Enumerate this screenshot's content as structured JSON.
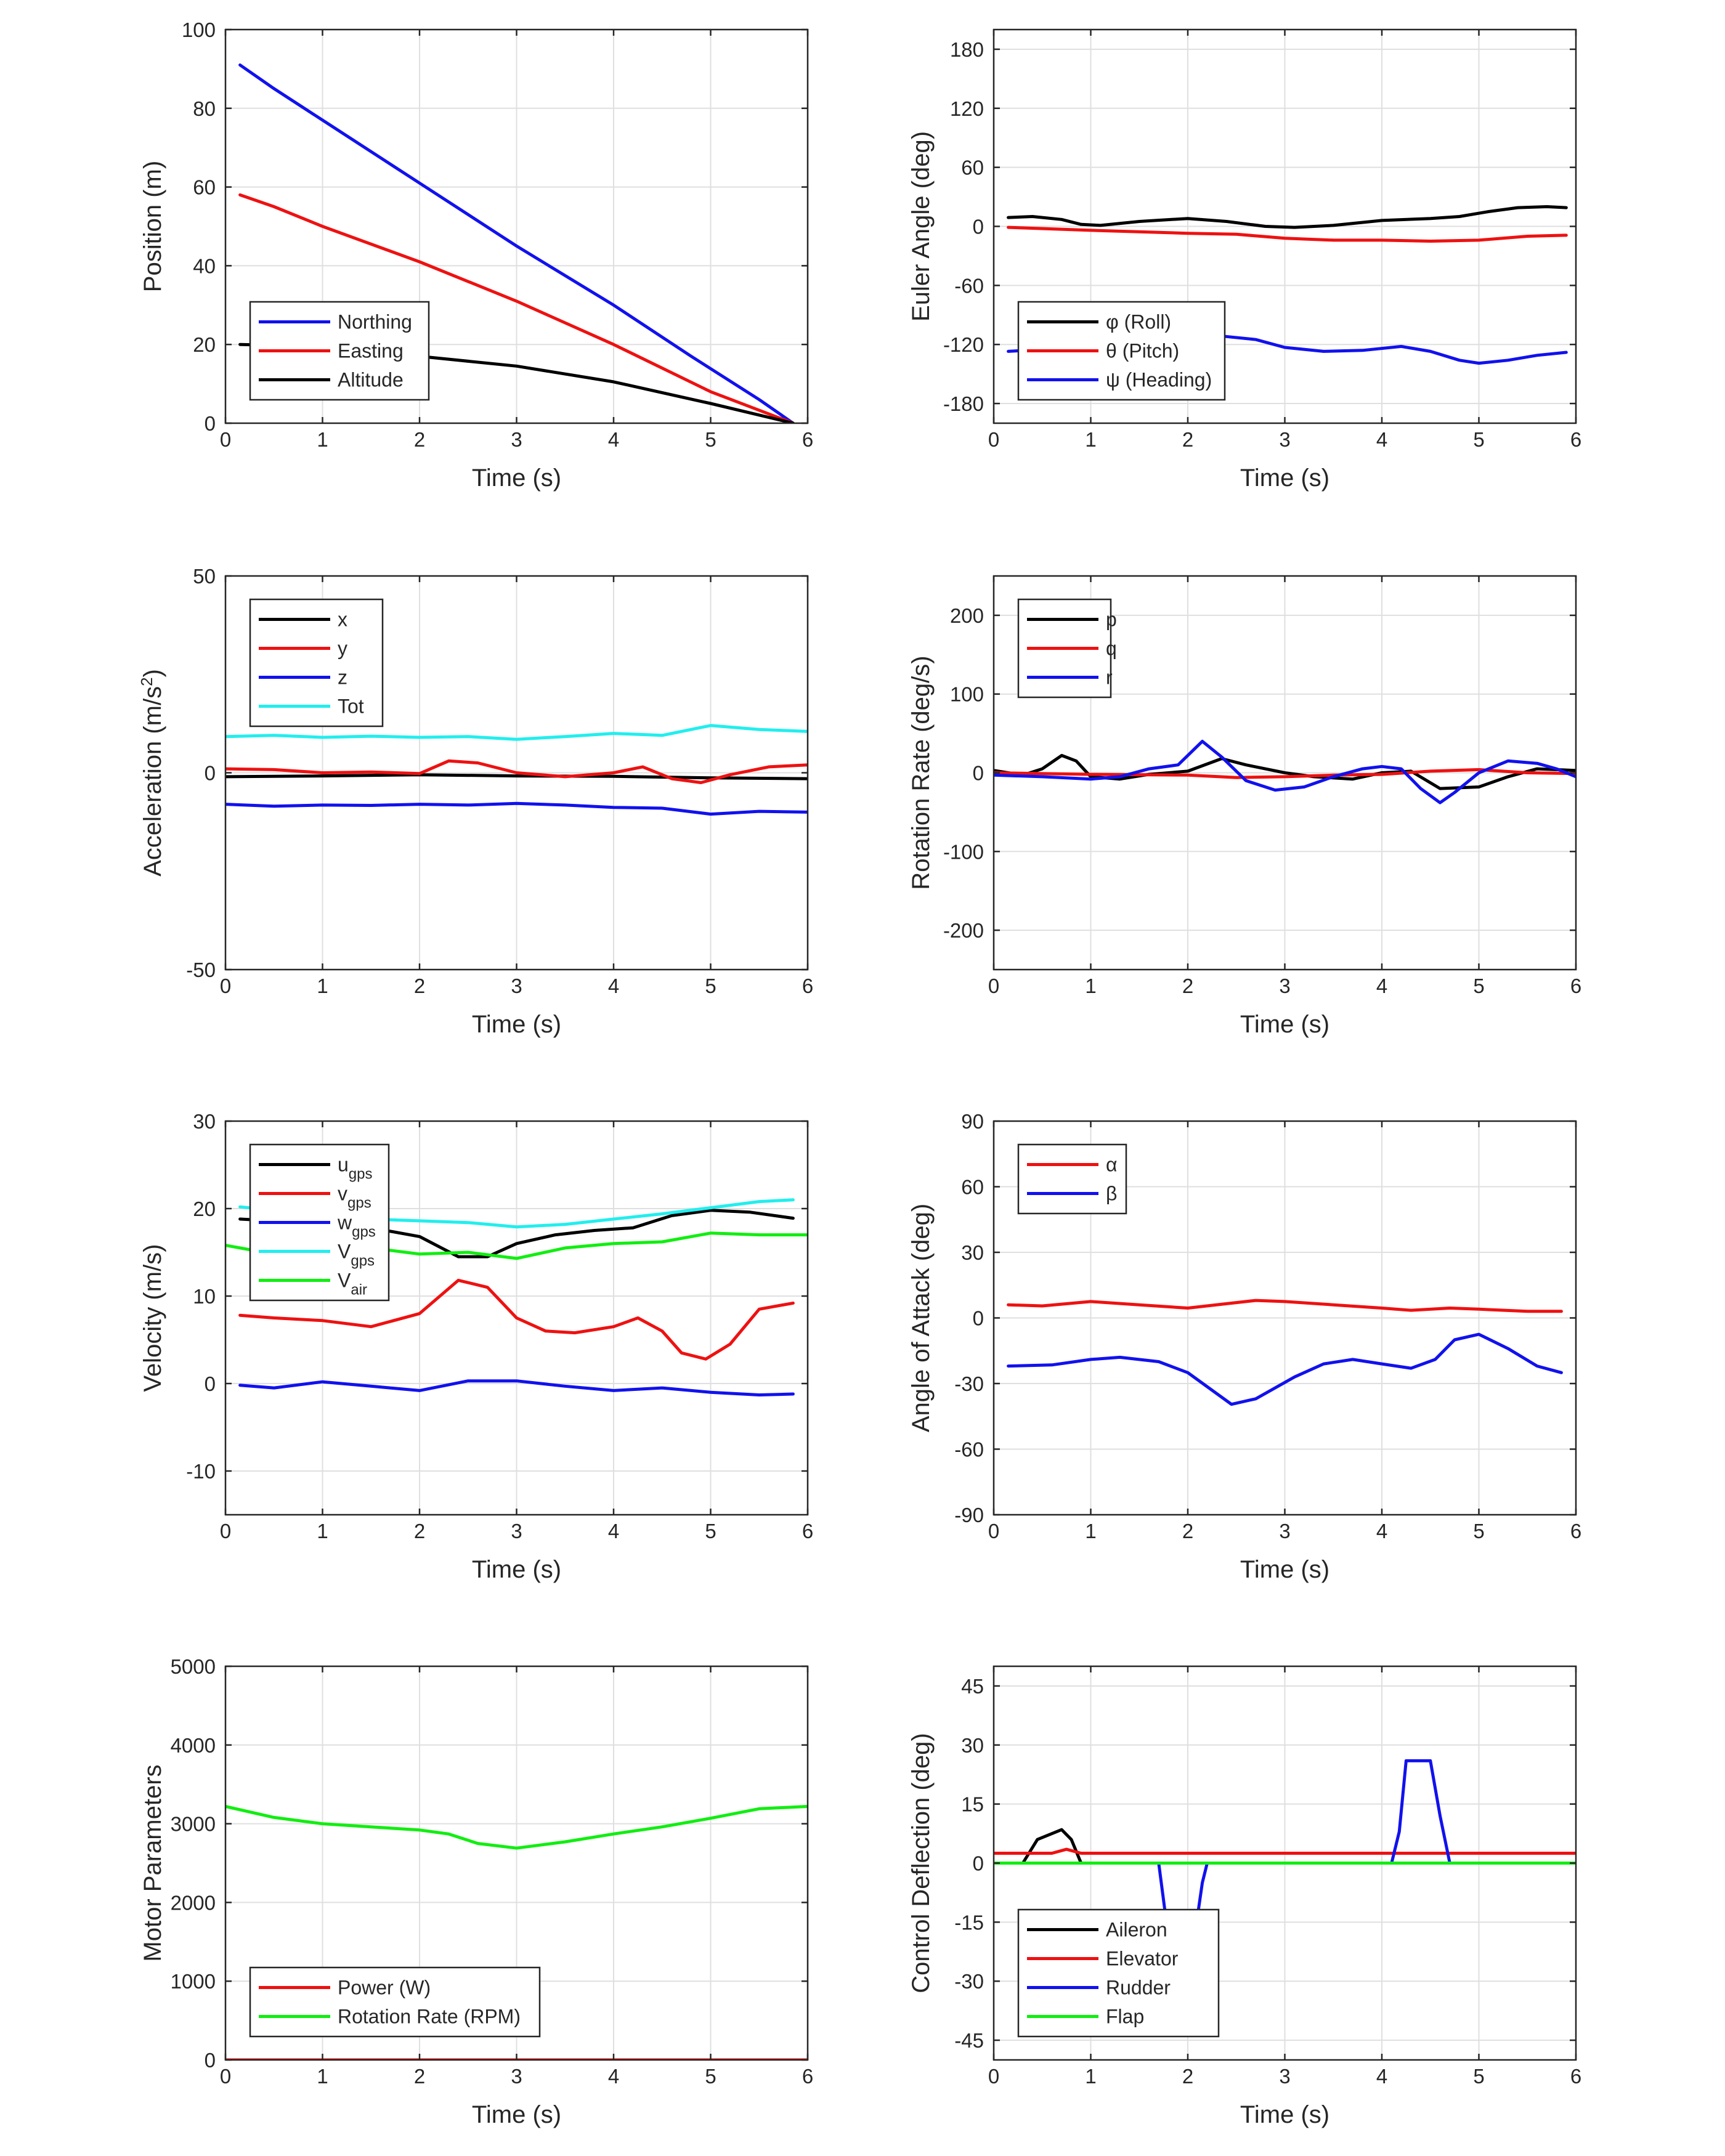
{
  "colors": {
    "black": "#000000",
    "red": "#ee1111",
    "blue": "#1111ee",
    "cyan": "#22eeee",
    "green": "#11ee11"
  },
  "chart_data": [
    {
      "type": "line",
      "xlabel": "Time (s)",
      "ylabel": "Position (m)",
      "xlim": [
        0,
        6
      ],
      "ylim": [
        0,
        100
      ],
      "xticks": [
        0,
        1,
        2,
        3,
        4,
        5,
        6
      ],
      "yticks": [
        0,
        20,
        40,
        60,
        80,
        100
      ],
      "grid": true,
      "legend_position": "bottom-left",
      "series": [
        {
          "name": "Northing",
          "color": "#1111ee",
          "x": [
            0.15,
            0.5,
            1,
            2,
            3,
            4,
            4.8,
            5.5,
            5.85
          ],
          "y": [
            91,
            85,
            77,
            61,
            45,
            30,
            17,
            6,
            0
          ]
        },
        {
          "name": "Easting",
          "color": "#ee1111",
          "x": [
            0.15,
            0.5,
            1,
            2,
            3,
            4,
            5,
            5.85
          ],
          "y": [
            58,
            55,
            50,
            41,
            31,
            20,
            8,
            0
          ]
        },
        {
          "name": "Altitude",
          "color": "#000000",
          "x": [
            0.15,
            0.5,
            1,
            2,
            3,
            4,
            5,
            5.85
          ],
          "y": [
            20,
            19.8,
            19,
            17,
            14.5,
            10.5,
            5,
            0
          ]
        }
      ]
    },
    {
      "type": "line",
      "xlabel": "Time (s)",
      "ylabel": "Euler Angle (deg)",
      "xlim": [
        0,
        6
      ],
      "ylim": [
        -200,
        200
      ],
      "xticks": [
        0,
        1,
        2,
        3,
        4,
        5,
        6
      ],
      "yticks": [
        -180,
        -120,
        -60,
        0,
        60,
        120,
        180
      ],
      "grid": true,
      "legend_position": "bottom-left",
      "series": [
        {
          "name": "φ (Roll)",
          "color": "#000000",
          "x": [
            0.15,
            0.4,
            0.7,
            0.9,
            1.1,
            1.5,
            2.0,
            2.4,
            2.8,
            3.1,
            3.5,
            4.0,
            4.5,
            4.8,
            5.1,
            5.4,
            5.7,
            5.9
          ],
          "y": [
            9,
            10,
            7,
            2,
            1,
            5,
            8,
            5,
            0,
            -1,
            1,
            6,
            8,
            10,
            15,
            19,
            20,
            19
          ]
        },
        {
          "name": "θ (Pitch)",
          "color": "#ee1111",
          "x": [
            0.15,
            1,
            2,
            2.5,
            3,
            3.5,
            4,
            4.5,
            5,
            5.5,
            5.9
          ],
          "y": [
            -1,
            -4,
            -7,
            -8,
            -12,
            -14,
            -14,
            -15,
            -14,
            -10,
            -9
          ]
        },
        {
          "name": "ψ (Heading)",
          "color": "#1111ee",
          "x": [
            0.15,
            0.5,
            1.0,
            1.5,
            2.0,
            2.3,
            2.7,
            3.0,
            3.4,
            3.8,
            4.2,
            4.5,
            4.8,
            5.0,
            5.3,
            5.6,
            5.9
          ],
          "y": [
            -127,
            -125,
            -120,
            -116,
            -112,
            -111,
            -115,
            -123,
            -127,
            -126,
            -122,
            -127,
            -136,
            -139,
            -136,
            -131,
            -128
          ]
        }
      ]
    },
    {
      "type": "line",
      "xlabel": "Time (s)",
      "ylabel": "Acceleration (m/s²)",
      "xlim": [
        0,
        6
      ],
      "ylim": [
        -50,
        50
      ],
      "xticks": [
        0,
        1,
        2,
        3,
        4,
        5,
        6
      ],
      "yticks": [
        -50,
        0,
        50
      ],
      "grid": true,
      "legend_position": "top-left",
      "series": [
        {
          "name": "x",
          "color": "#000000",
          "x": [
            0,
            1,
            2,
            3,
            4,
            5,
            6
          ],
          "y": [
            -1,
            -0.8,
            -0.5,
            -0.8,
            -0.9,
            -1.3,
            -1.5
          ]
        },
        {
          "name": "y",
          "color": "#ee1111",
          "x": [
            0,
            0.5,
            1.0,
            1.5,
            2.0,
            2.3,
            2.6,
            3.0,
            3.5,
            4.0,
            4.3,
            4.6,
            4.9,
            5.2,
            5.6,
            6.0
          ],
          "y": [
            1,
            0.8,
            0,
            0.2,
            -0.2,
            3,
            2.5,
            0,
            -1,
            0,
            1.5,
            -1.5,
            -2.5,
            -0.5,
            1.5,
            2
          ]
        },
        {
          "name": "z",
          "color": "#1111ee",
          "x": [
            0,
            0.5,
            1,
            1.5,
            2,
            2.5,
            3,
            3.5,
            4,
            4.5,
            5,
            5.5,
            6
          ],
          "y": [
            -8,
            -8.5,
            -8.2,
            -8.3,
            -8,
            -8.2,
            -7.8,
            -8.2,
            -8.8,
            -9,
            -10.5,
            -9.8,
            -10
          ]
        },
        {
          "name": "Tot",
          "color": "#22eeee",
          "x": [
            0,
            0.5,
            1,
            1.5,
            2,
            2.5,
            3,
            3.5,
            4,
            4.5,
            5,
            5.5,
            6
          ],
          "y": [
            9.2,
            9.5,
            9,
            9.3,
            9,
            9.2,
            8.5,
            9.2,
            10,
            9.5,
            12,
            11,
            10.5
          ]
        }
      ]
    },
    {
      "type": "line",
      "xlabel": "Time (s)",
      "ylabel": "Rotation Rate (deg/s)",
      "xlim": [
        0,
        6
      ],
      "ylim": [
        -250,
        250
      ],
      "xticks": [
        0,
        1,
        2,
        3,
        4,
        5,
        6
      ],
      "yticks": [
        -200,
        -100,
        0,
        100,
        200
      ],
      "grid": true,
      "legend_position": "top-left",
      "series": [
        {
          "name": "p",
          "color": "#000000",
          "x": [
            0,
            0.3,
            0.5,
            0.7,
            0.85,
            1.0,
            1.3,
            1.6,
            2.0,
            2.35,
            2.6,
            3.0,
            3.3,
            3.7,
            4.0,
            4.3,
            4.6,
            5.0,
            5.3,
            5.6,
            6.0
          ],
          "y": [
            3,
            -3,
            5,
            22,
            15,
            -5,
            -8,
            -2,
            2,
            18,
            10,
            0,
            -5,
            -8,
            0,
            2,
            -20,
            -18,
            -5,
            5,
            3
          ]
        },
        {
          "name": "q",
          "color": "#ee1111",
          "x": [
            0,
            1,
            2,
            2.5,
            3,
            3.5,
            4,
            4.5,
            5,
            5.5,
            6
          ],
          "y": [
            0,
            -2,
            -3,
            -6,
            -5,
            -3,
            -2,
            2,
            4,
            0,
            -1
          ]
        },
        {
          "name": "r",
          "color": "#1111ee",
          "x": [
            0,
            0.5,
            1.0,
            1.3,
            1.6,
            1.9,
            2.15,
            2.35,
            2.6,
            2.9,
            3.2,
            3.5,
            3.8,
            4.0,
            4.2,
            4.4,
            4.6,
            4.75,
            5.0,
            5.3,
            5.6,
            5.8,
            6.0
          ],
          "y": [
            -3,
            -5,
            -8,
            -5,
            5,
            10,
            40,
            20,
            -10,
            -22,
            -18,
            -5,
            5,
            8,
            5,
            -20,
            -38,
            -25,
            0,
            15,
            12,
            5,
            -5
          ]
        }
      ]
    },
    {
      "type": "line",
      "xlabel": "Time (s)",
      "ylabel": "Velocity (m/s)",
      "xlim": [
        0,
        6
      ],
      "ylim": [
        -15,
        30
      ],
      "xticks": [
        0,
        1,
        2,
        3,
        4,
        5,
        6
      ],
      "yticks": [
        -10,
        0,
        10,
        20,
        30
      ],
      "grid": true,
      "legend_position": "top-left",
      "series": [
        {
          "name": "u_gps",
          "color": "#000000",
          "x": [
            0.15,
            0.5,
            1.0,
            1.5,
            2.0,
            2.4,
            2.7,
            3.0,
            3.4,
            3.8,
            4.2,
            4.6,
            5.0,
            5.4,
            5.85
          ],
          "y": [
            18.8,
            18.6,
            18.3,
            17.8,
            16.8,
            14.5,
            14.5,
            16,
            17,
            17.5,
            17.8,
            19.2,
            19.8,
            19.6,
            18.9
          ]
        },
        {
          "name": "v_gps",
          "color": "#ee1111",
          "x": [
            0.15,
            0.5,
            1.0,
            1.5,
            2.0,
            2.4,
            2.7,
            3.0,
            3.3,
            3.6,
            4.0,
            4.25,
            4.5,
            4.7,
            4.95,
            5.2,
            5.5,
            5.85
          ],
          "y": [
            7.8,
            7.5,
            7.2,
            6.5,
            8,
            11.8,
            11,
            7.5,
            6,
            5.8,
            6.5,
            7.5,
            6,
            3.5,
            2.8,
            4.5,
            8.5,
            9.2
          ]
        },
        {
          "name": "w_gps",
          "color": "#1111ee",
          "x": [
            0.15,
            0.5,
            1.0,
            1.5,
            2.0,
            2.5,
            3.0,
            3.5,
            4.0,
            4.5,
            5.0,
            5.5,
            5.85
          ],
          "y": [
            -0.2,
            -0.5,
            0.2,
            -0.3,
            -0.8,
            0.3,
            0.3,
            -0.3,
            -0.8,
            -0.5,
            -1,
            -1.3,
            -1.2
          ]
        },
        {
          "name": "V_gps",
          "color": "#22eeee",
          "x": [
            0.15,
            0.5,
            1.0,
            1.5,
            2.0,
            2.5,
            3.0,
            3.5,
            4.0,
            4.5,
            5.0,
            5.5,
            5.85
          ],
          "y": [
            20.2,
            19.8,
            19.3,
            18.8,
            18.6,
            18.4,
            17.9,
            18.2,
            18.8,
            19.4,
            20.1,
            20.8,
            21
          ]
        },
        {
          "name": "V_air",
          "color": "#11ee11",
          "x": [
            0,
            0.5,
            1.0,
            1.5,
            2.0,
            2.5,
            3.0,
            3.5,
            4.0,
            4.5,
            5.0,
            5.5,
            6.0
          ],
          "y": [
            15.8,
            14.8,
            15,
            15.5,
            14.8,
            15,
            14.3,
            15.5,
            16,
            16.2,
            17.2,
            17,
            17
          ]
        }
      ]
    },
    {
      "type": "line",
      "xlabel": "Time (s)",
      "ylabel": "Angle of Attack (deg)",
      "xlim": [
        0,
        6
      ],
      "ylim": [
        -90,
        90
      ],
      "xticks": [
        0,
        1,
        2,
        3,
        4,
        5,
        6
      ],
      "yticks": [
        -90,
        -60,
        -30,
        0,
        30,
        60,
        90
      ],
      "grid": true,
      "legend_position": "top-left",
      "series": [
        {
          "name": "α",
          "color": "#ee1111",
          "x": [
            0.15,
            0.5,
            1.0,
            1.5,
            2.0,
            2.4,
            2.7,
            3.0,
            3.5,
            4.0,
            4.3,
            4.7,
            5.0,
            5.5,
            5.85
          ],
          "y": [
            6,
            5.5,
            7.5,
            6,
            4.5,
            6.5,
            8,
            7.5,
            6,
            4.5,
            3.5,
            4.5,
            4,
            3,
            3
          ]
        },
        {
          "name": "β",
          "color": "#1111ee",
          "x": [
            0.15,
            0.6,
            1.0,
            1.3,
            1.7,
            2.0,
            2.45,
            2.7,
            3.1,
            3.4,
            3.7,
            4.0,
            4.3,
            4.55,
            4.75,
            5.0,
            5.3,
            5.6,
            5.85
          ],
          "y": [
            -22,
            -21.5,
            -19,
            -18,
            -20,
            -25,
            -39.5,
            -37,
            -27,
            -21,
            -19,
            -21,
            -23,
            -19,
            -10,
            -7.5,
            -14,
            -22,
            -25
          ]
        }
      ]
    },
    {
      "type": "line",
      "xlabel": "Time (s)",
      "ylabel": "Motor Parameters",
      "xlim": [
        0,
        6
      ],
      "ylim": [
        0,
        5000
      ],
      "xticks": [
        0,
        1,
        2,
        3,
        4,
        5,
        6
      ],
      "yticks": [
        0,
        1000,
        2000,
        3000,
        4000,
        5000
      ],
      "grid": true,
      "legend_position": "bottom-left",
      "series": [
        {
          "name": "Power (W)",
          "color": "#ee1111",
          "x": [
            0,
            6
          ],
          "y": [
            0,
            0
          ]
        },
        {
          "name": "Rotation Rate (RPM)",
          "color": "#11ee11",
          "x": [
            0,
            0.5,
            1.0,
            1.5,
            2.0,
            2.3,
            2.6,
            3.0,
            3.5,
            4.0,
            4.5,
            5.0,
            5.5,
            6.0
          ],
          "y": [
            3220,
            3080,
            3000,
            2960,
            2920,
            2870,
            2750,
            2690,
            2770,
            2870,
            2960,
            3070,
            3190,
            3220
          ]
        }
      ]
    },
    {
      "type": "line",
      "xlabel": "Time (s)",
      "ylabel": "Control Deflection (deg)",
      "xlim": [
        0,
        6
      ],
      "ylim": [
        -50,
        50
      ],
      "xticks": [
        0,
        1,
        2,
        3,
        4,
        5,
        6
      ],
      "yticks": [
        -45,
        -30,
        -15,
        0,
        15,
        30,
        45
      ],
      "grid": true,
      "legend_position": "bottom-left",
      "series": [
        {
          "name": "Aileron",
          "color": "#000000",
          "x": [
            0,
            0.3,
            0.45,
            0.7,
            0.8,
            0.9,
            1.0,
            6.0
          ],
          "y": [
            0,
            0,
            6,
            8.5,
            6,
            0,
            0,
            0
          ]
        },
        {
          "name": "Elevator",
          "color": "#ee1111",
          "x": [
            0,
            0.6,
            0.75,
            0.9,
            6.0
          ],
          "y": [
            2.5,
            2.5,
            3.5,
            2.5,
            2.5
          ]
        },
        {
          "name": "Rudder",
          "color": "#1111ee",
          "x": [
            0,
            1.7,
            1.78,
            1.9,
            2.05,
            2.15,
            2.2,
            4.1,
            4.18,
            4.25,
            4.5,
            4.6,
            4.7,
            6.0
          ],
          "y": [
            0,
            0,
            -15,
            -28,
            -22,
            -5,
            0,
            0,
            8,
            26,
            26,
            12,
            0,
            0
          ]
        },
        {
          "name": "Flap",
          "color": "#11ee11",
          "x": [
            0,
            6
          ],
          "y": [
            0,
            0
          ]
        }
      ]
    }
  ]
}
